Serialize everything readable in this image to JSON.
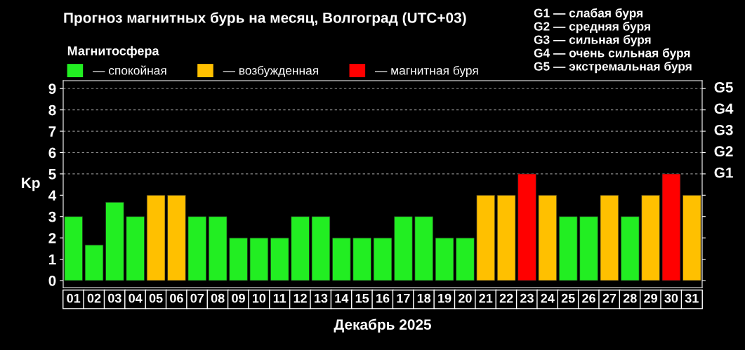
{
  "chart_data": {
    "type": "bar",
    "title": "Прогноз магнитных бурь на месяц, Волгоград (UTC+03)",
    "categories": [
      "01",
      "02",
      "03",
      "04",
      "05",
      "06",
      "07",
      "08",
      "09",
      "10",
      "11",
      "12",
      "13",
      "14",
      "15",
      "16",
      "17",
      "18",
      "19",
      "20",
      "21",
      "22",
      "23",
      "24",
      "25",
      "26",
      "27",
      "28",
      "29",
      "30",
      "31"
    ],
    "series": [
      {
        "name": "— спокойная",
        "color": "#22ee22",
        "values": [
          3,
          1.67,
          3.67,
          3,
          null,
          null,
          3,
          3,
          2,
          2,
          2,
          3,
          3,
          2,
          2,
          2,
          3,
          3,
          2,
          2,
          null,
          null,
          null,
          null,
          3,
          3,
          null,
          3,
          null,
          null,
          null
        ]
      },
      {
        "name": "— возбужденная",
        "color": "#ffc000",
        "values": [
          null,
          null,
          null,
          null,
          4,
          4,
          null,
          null,
          null,
          null,
          null,
          null,
          null,
          null,
          null,
          null,
          null,
          null,
          null,
          null,
          4,
          4,
          null,
          4,
          null,
          null,
          4,
          null,
          4,
          null,
          4
        ]
      },
      {
        "name": "— магнитная буря",
        "color": "#ff0000",
        "values": [
          null,
          null,
          null,
          null,
          null,
          null,
          null,
          null,
          null,
          null,
          null,
          null,
          null,
          null,
          null,
          null,
          null,
          null,
          null,
          null,
          null,
          null,
          5,
          null,
          null,
          null,
          null,
          null,
          null,
          5,
          null
        ]
      }
    ],
    "legend": "top left",
    "legend_title": "Магнитосфера",
    "xlabel": "Декабрь 2025",
    "ylabel": "Kp",
    "ylim": [
      -0.33,
      9.37
    ],
    "yticks": [
      0,
      1,
      2,
      3,
      4,
      5,
      6,
      7,
      8,
      9
    ],
    "ref_lines": [
      {
        "axis": "y",
        "value": 5,
        "label": "G1",
        "color": "#888888",
        "line_style": "dashed"
      },
      {
        "axis": "y",
        "value": 6,
        "label": "G2",
        "color": "#888888",
        "line_style": "dashed"
      },
      {
        "axis": "y",
        "value": 7,
        "label": "G3",
        "color": "#888888",
        "line_style": "dashed"
      },
      {
        "axis": "y",
        "value": 8,
        "label": "G4",
        "color": "#888888",
        "line_style": "dashed"
      },
      {
        "axis": "y",
        "value": 9,
        "label": "G5",
        "color": "#888888",
        "line_style": "dashed"
      }
    ],
    "annotations": [
      "G1 — слабая буря",
      "G2 — средняя буря",
      "G3 — сильная буря",
      "G4 — очень сильная буря",
      "G5 — экстремальная буря"
    ]
  }
}
